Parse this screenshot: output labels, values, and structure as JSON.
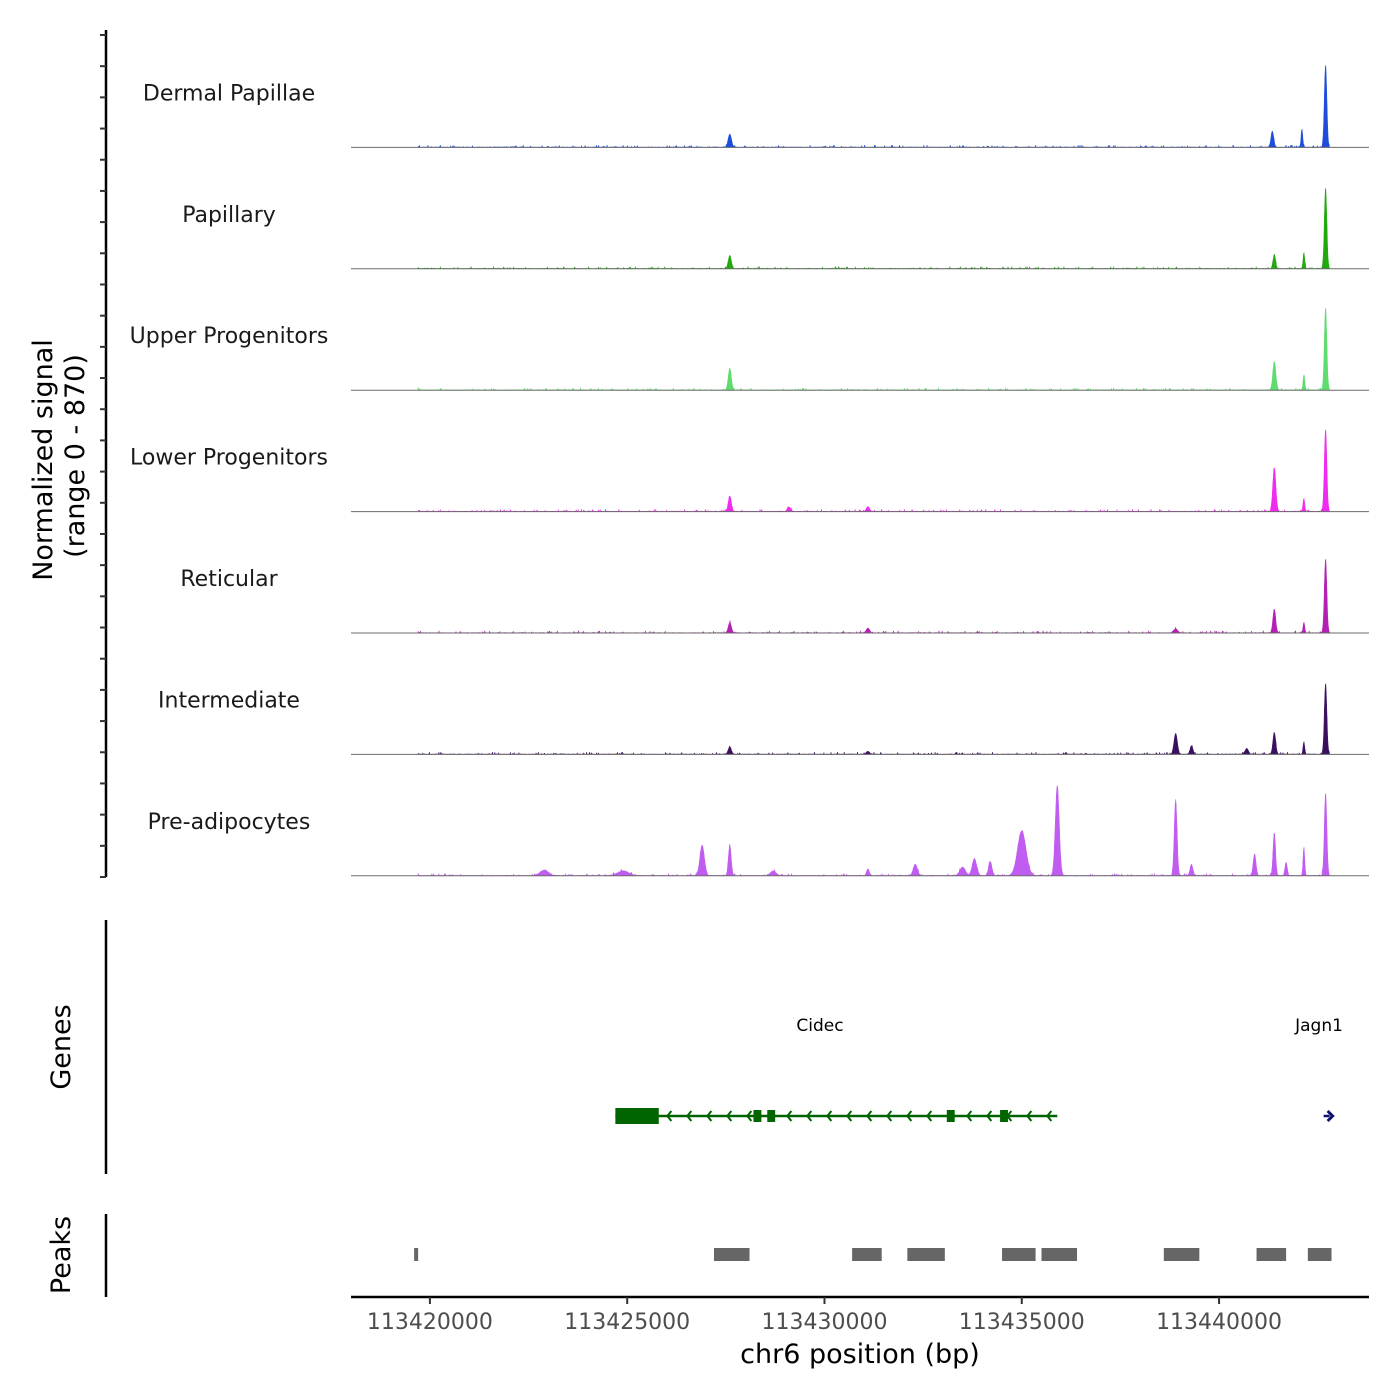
{
  "chart_data": {
    "type": "area",
    "title": "",
    "xlabel": "chr6 position (bp)",
    "ylabel": "Normalized signal",
    "ylabel_sub": "(range 0 - 870)",
    "xlim": [
      113418000,
      113443800
    ],
    "ylim": [
      0,
      870
    ],
    "x_ticks": [
      113420000,
      113425000,
      113430000,
      113435000,
      113440000
    ],
    "x_tick_labels": [
      "113420000",
      "113425000",
      "113430000",
      "113435000",
      "113440000"
    ],
    "tracks": [
      {
        "name": "Dermal Papillae",
        "color": "#1f4ddb",
        "peaks": [
          [
            113419650,
            45,
            80
          ],
          [
            113427600,
            140,
            120
          ],
          [
            113441350,
            170,
            100
          ],
          [
            113442100,
            190,
            60
          ],
          [
            113442700,
            870,
            90
          ]
        ]
      },
      {
        "name": "Papillary",
        "color": "#22a80f",
        "peaks": [
          [
            113419650,
            75,
            80
          ],
          [
            113427600,
            140,
            110
          ],
          [
            113441400,
            150,
            90
          ],
          [
            113442150,
            170,
            60
          ],
          [
            113442700,
            850,
            90
          ]
        ]
      },
      {
        "name": "Upper Progenitors",
        "color": "#5fdc6e",
        "peaks": [
          [
            113419650,
            90,
            90
          ],
          [
            113427600,
            230,
            110
          ],
          [
            113441400,
            300,
            110
          ],
          [
            113442150,
            160,
            60
          ],
          [
            113442700,
            870,
            90
          ]
        ]
      },
      {
        "name": "Lower Progenitors",
        "color": "#ef2bef",
        "peaks": [
          [
            113419650,
            70,
            80
          ],
          [
            113427600,
            160,
            110
          ],
          [
            113429100,
            45,
            120
          ],
          [
            113431100,
            50,
            120
          ],
          [
            113441400,
            460,
            110
          ],
          [
            113442150,
            140,
            60
          ],
          [
            113442700,
            870,
            90
          ]
        ]
      },
      {
        "name": "Reticular",
        "color": "#b320b3",
        "peaks": [
          [
            113419650,
            70,
            80
          ],
          [
            113427600,
            110,
            110
          ],
          [
            113431100,
            50,
            120
          ],
          [
            113438900,
            40,
            150
          ],
          [
            113441400,
            250,
            100
          ],
          [
            113442150,
            110,
            60
          ],
          [
            113442700,
            780,
            90
          ]
        ]
      },
      {
        "name": "Intermediate",
        "color": "#3a105e",
        "peaks": [
          [
            113419650,
            60,
            80
          ],
          [
            113427600,
            80,
            110
          ],
          [
            113431100,
            30,
            120
          ],
          [
            113438900,
            220,
            120
          ],
          [
            113439300,
            90,
            100
          ],
          [
            113440700,
            60,
            120
          ],
          [
            113441400,
            230,
            100
          ],
          [
            113442150,
            130,
            60
          ],
          [
            113442700,
            750,
            90
          ]
        ]
      },
      {
        "name": "Pre-adipocytes",
        "color": "#c05cf0",
        "peaks": [
          [
            113419650,
            80,
            90
          ],
          [
            113422900,
            60,
            300
          ],
          [
            113424900,
            50,
            400
          ],
          [
            113426900,
            320,
            160
          ],
          [
            113427600,
            320,
            100
          ],
          [
            113428700,
            50,
            200
          ],
          [
            113431100,
            70,
            100
          ],
          [
            113432300,
            120,
            150
          ],
          [
            113433500,
            90,
            200
          ],
          [
            113433800,
            180,
            160
          ],
          [
            113434200,
            150,
            120
          ],
          [
            113435000,
            470,
            300
          ],
          [
            113435900,
            950,
            140
          ],
          [
            113438900,
            800,
            100
          ],
          [
            113439300,
            120,
            100
          ],
          [
            113440900,
            230,
            100
          ],
          [
            113441400,
            450,
            90
          ],
          [
            113441700,
            140,
            80
          ],
          [
            113442150,
            300,
            60
          ],
          [
            113442700,
            870,
            90
          ]
        ]
      }
    ],
    "genes_label": "Genes",
    "genes": [
      {
        "name": "Cidec",
        "start": 113424700,
        "end": 113435900,
        "strand": "-",
        "color": "#006400",
        "exons": [
          [
            113424700,
            113425800
          ],
          [
            113428200,
            113428400
          ],
          [
            113428550,
            113428750
          ],
          [
            113433100,
            113433300
          ],
          [
            113434450,
            113434650
          ]
        ]
      },
      {
        "name": "Jagn1",
        "start": 113442650,
        "end": 113442800,
        "strand": "+",
        "color": "#10106e",
        "exons": []
      }
    ],
    "peaks_label": "Peaks",
    "peak_regions": [
      [
        113419600,
        113419700
      ],
      [
        113427200,
        113428100
      ],
      [
        113430700,
        113431450
      ],
      [
        113432100,
        113433050
      ],
      [
        113434500,
        113435350
      ],
      [
        113435500,
        113436400
      ],
      [
        113438600,
        113439500
      ],
      [
        113440950,
        113441700
      ],
      [
        113442250,
        113442850
      ]
    ]
  }
}
